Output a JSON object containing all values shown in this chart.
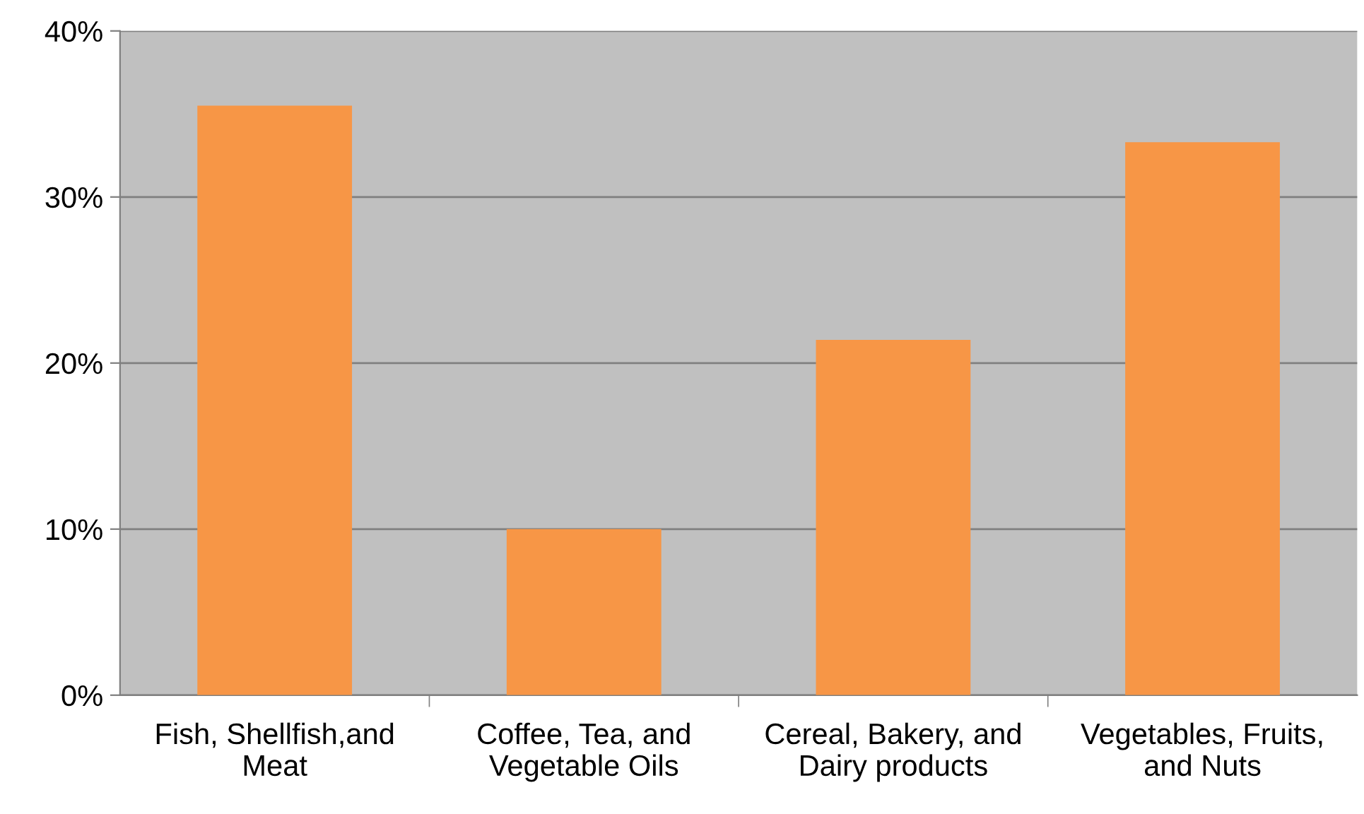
{
  "chart_data": {
    "type": "bar",
    "categories": [
      "Fish, Shellfish,and\nMeat",
      "Coffee, Tea, and\nVegetable Oils",
      "Cereal, Bakery, and\nDairy products",
      "Vegetables, Fruits,\nand Nuts"
    ],
    "values": [
      35.5,
      10,
      21.4,
      33.3
    ],
    "color": "#f79646",
    "ylim": [
      0,
      40
    ],
    "yticks": [
      {
        "value": 0,
        "label": "0%"
      },
      {
        "value": 10,
        "label": "10%"
      },
      {
        "value": 20,
        "label": "20%"
      },
      {
        "value": 30,
        "label": "30%"
      },
      {
        "value": 40,
        "label": "40%"
      }
    ],
    "grid": "y"
  }
}
